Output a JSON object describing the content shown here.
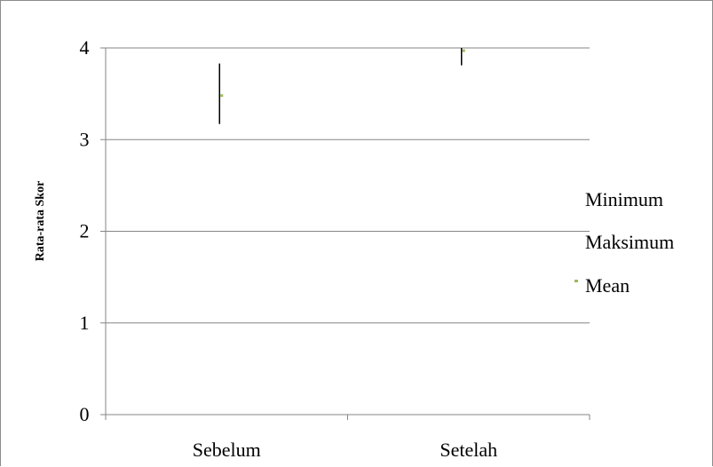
{
  "chart_data": {
    "type": "stock",
    "categories": [
      "Sebelum",
      "Setelah"
    ],
    "series": [
      {
        "name": "Minimum",
        "values": [
          3.17,
          3.81
        ],
        "color": "#000000"
      },
      {
        "name": "Maksimum",
        "values": [
          3.83,
          4.0
        ],
        "color": "#000000"
      },
      {
        "name": "Mean",
        "values": [
          3.48,
          3.97
        ],
        "color": "#9bbb59"
      }
    ],
    "ylabel": "Rata-rata Skor",
    "xlabel": "",
    "ylim": [
      0,
      4
    ],
    "yticks": [
      "0",
      "1",
      "2",
      "3",
      "4"
    ],
    "grid": true,
    "legend_position": "right",
    "colors": {
      "gridline": "#868686",
      "range_line": "#000000",
      "mean_marker": "#9bbb59"
    }
  }
}
